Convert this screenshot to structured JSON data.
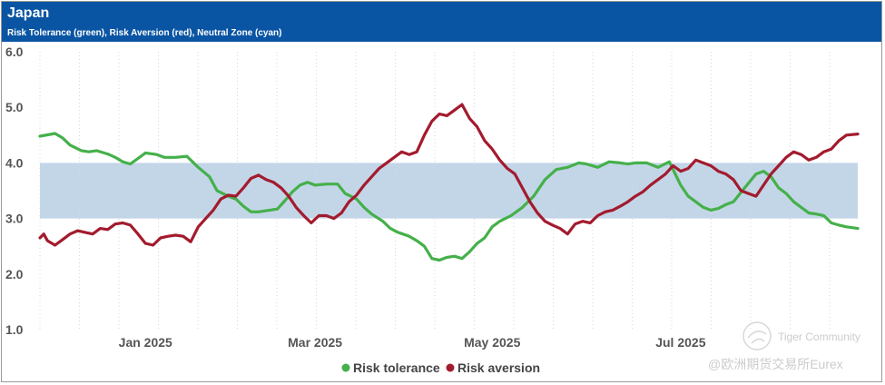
{
  "header": {
    "title": "Japan",
    "subtitle": "Risk Tolerance (green), Risk Aversion (red), Neutral Zone (cyan)"
  },
  "chart_data": {
    "type": "line",
    "title": "Japan",
    "subtitle": "Risk Tolerance (green), Risk Aversion (red), Neutral Zone (cyan)",
    "x_domain": [
      0,
      217
    ],
    "ylim": [
      1.0,
      6.0
    ],
    "y_ticks": [
      1.0,
      2.0,
      3.0,
      4.0,
      5.0,
      6.0
    ],
    "y_tick_labels": [
      "1.0",
      "2.0",
      "3.0",
      "4.0",
      "5.0",
      "6.0"
    ],
    "x_ticks": [
      {
        "label": "Jan 2025",
        "x": 28
      },
      {
        "label": "Mar 2025",
        "x": 73
      },
      {
        "label": "May 2025",
        "x": 120
      },
      {
        "label": "Jul 2025",
        "x": 170
      }
    ],
    "neutral_zone": {
      "low": 3.0,
      "high": 4.0,
      "color": "#c3d6e8"
    },
    "grid": "vertical dotted",
    "legend": [
      "Risk tolerance",
      "Risk aversion"
    ],
    "series": [
      {
        "name": "Risk tolerance",
        "color": "#45b04a",
        "points": [
          [
            0,
            4.48
          ],
          [
            4,
            4.53
          ],
          [
            6,
            4.45
          ],
          [
            8,
            4.32
          ],
          [
            11,
            4.22
          ],
          [
            13,
            4.2
          ],
          [
            15,
            4.22
          ],
          [
            18,
            4.16
          ],
          [
            20,
            4.1
          ],
          [
            22,
            4.02
          ],
          [
            24,
            3.98
          ],
          [
            26,
            4.08
          ],
          [
            28,
            4.18
          ],
          [
            31,
            4.15
          ],
          [
            33,
            4.1
          ],
          [
            36,
            4.1
          ],
          [
            39,
            4.12
          ],
          [
            40,
            4.05
          ],
          [
            42,
            3.92
          ],
          [
            45,
            3.75
          ],
          [
            47,
            3.5
          ],
          [
            50,
            3.4
          ],
          [
            52,
            3.35
          ],
          [
            54,
            3.22
          ],
          [
            56,
            3.12
          ],
          [
            58,
            3.12
          ],
          [
            61,
            3.15
          ],
          [
            63,
            3.17
          ],
          [
            65,
            3.32
          ],
          [
            67,
            3.48
          ],
          [
            69,
            3.6
          ],
          [
            71,
            3.65
          ],
          [
            73,
            3.6
          ],
          [
            76,
            3.62
          ],
          [
            79,
            3.62
          ],
          [
            81,
            3.45
          ],
          [
            84,
            3.35
          ],
          [
            86,
            3.2
          ],
          [
            88,
            3.08
          ],
          [
            91,
            2.95
          ],
          [
            93,
            2.82
          ],
          [
            95,
            2.75
          ],
          [
            98,
            2.68
          ],
          [
            100,
            2.6
          ],
          [
            102,
            2.5
          ],
          [
            104,
            2.28
          ],
          [
            106,
            2.25
          ],
          [
            108,
            2.3
          ],
          [
            110,
            2.32
          ],
          [
            112,
            2.28
          ],
          [
            114,
            2.4
          ],
          [
            116,
            2.55
          ],
          [
            118,
            2.65
          ],
          [
            120,
            2.85
          ],
          [
            122,
            2.95
          ],
          [
            125,
            3.05
          ],
          [
            128,
            3.2
          ],
          [
            131,
            3.4
          ],
          [
            134,
            3.7
          ],
          [
            137,
            3.88
          ],
          [
            140,
            3.92
          ],
          [
            143,
            4.0
          ],
          [
            145,
            3.98
          ],
          [
            148,
            3.92
          ],
          [
            151,
            4.02
          ],
          [
            154,
            4.0
          ],
          [
            156,
            3.98
          ],
          [
            158,
            4.0
          ],
          [
            161,
            4.0
          ],
          [
            164,
            3.92
          ],
          [
            167,
            4.02
          ],
          [
            170,
            3.6
          ],
          [
            172,
            3.4
          ],
          [
            174,
            3.3
          ],
          [
            176,
            3.2
          ],
          [
            178,
            3.15
          ],
          [
            180,
            3.18
          ],
          [
            182,
            3.25
          ],
          [
            184,
            3.3
          ],
          [
            187,
            3.55
          ],
          [
            190,
            3.8
          ],
          [
            192,
            3.85
          ],
          [
            194,
            3.75
          ],
          [
            196,
            3.55
          ],
          [
            198,
            3.45
          ],
          [
            200,
            3.3
          ],
          [
            202,
            3.2
          ],
          [
            204,
            3.1
          ],
          [
            206,
            3.08
          ],
          [
            208,
            3.05
          ],
          [
            210,
            2.92
          ],
          [
            212,
            2.88
          ],
          [
            214,
            2.85
          ],
          [
            217,
            2.82
          ]
        ]
      },
      {
        "name": "Risk aversion",
        "color": "#a31b2e",
        "points": [
          [
            0,
            2.65
          ],
          [
            1,
            2.72
          ],
          [
            2,
            2.6
          ],
          [
            4,
            2.52
          ],
          [
            6,
            2.62
          ],
          [
            8,
            2.72
          ],
          [
            10,
            2.78
          ],
          [
            12,
            2.75
          ],
          [
            14,
            2.72
          ],
          [
            16,
            2.82
          ],
          [
            18,
            2.8
          ],
          [
            20,
            2.9
          ],
          [
            22,
            2.92
          ],
          [
            24,
            2.88
          ],
          [
            26,
            2.72
          ],
          [
            28,
            2.55
          ],
          [
            30,
            2.52
          ],
          [
            32,
            2.65
          ],
          [
            34,
            2.68
          ],
          [
            36,
            2.7
          ],
          [
            38,
            2.68
          ],
          [
            40,
            2.58
          ],
          [
            42,
            2.85
          ],
          [
            44,
            3.0
          ],
          [
            46,
            3.15
          ],
          [
            48,
            3.35
          ],
          [
            50,
            3.42
          ],
          [
            52,
            3.4
          ],
          [
            54,
            3.55
          ],
          [
            56,
            3.72
          ],
          [
            58,
            3.78
          ],
          [
            60,
            3.7
          ],
          [
            62,
            3.65
          ],
          [
            64,
            3.55
          ],
          [
            66,
            3.4
          ],
          [
            68,
            3.2
          ],
          [
            70,
            3.05
          ],
          [
            72,
            2.92
          ],
          [
            74,
            3.05
          ],
          [
            76,
            3.05
          ],
          [
            78,
            3.0
          ],
          [
            80,
            3.1
          ],
          [
            82,
            3.3
          ],
          [
            84,
            3.42
          ],
          [
            86,
            3.6
          ],
          [
            88,
            3.75
          ],
          [
            90,
            3.9
          ],
          [
            92,
            4.0
          ],
          [
            94,
            4.1
          ],
          [
            96,
            4.2
          ],
          [
            98,
            4.15
          ],
          [
            100,
            4.2
          ],
          [
            102,
            4.5
          ],
          [
            104,
            4.75
          ],
          [
            106,
            4.88
          ],
          [
            108,
            4.85
          ],
          [
            110,
            4.95
          ],
          [
            112,
            5.05
          ],
          [
            114,
            4.8
          ],
          [
            116,
            4.65
          ],
          [
            118,
            4.4
          ],
          [
            120,
            4.25
          ],
          [
            122,
            4.05
          ],
          [
            124,
            3.9
          ],
          [
            126,
            3.8
          ],
          [
            128,
            3.55
          ],
          [
            130,
            3.3
          ],
          [
            132,
            3.1
          ],
          [
            134,
            2.95
          ],
          [
            136,
            2.88
          ],
          [
            138,
            2.82
          ],
          [
            140,
            2.72
          ],
          [
            142,
            2.9
          ],
          [
            144,
            2.95
          ],
          [
            146,
            2.92
          ],
          [
            148,
            3.05
          ],
          [
            150,
            3.12
          ],
          [
            152,
            3.15
          ],
          [
            154,
            3.22
          ],
          [
            156,
            3.3
          ],
          [
            158,
            3.4
          ],
          [
            160,
            3.48
          ],
          [
            162,
            3.6
          ],
          [
            164,
            3.7
          ],
          [
            166,
            3.8
          ],
          [
            168,
            3.95
          ],
          [
            170,
            3.85
          ],
          [
            172,
            3.9
          ],
          [
            174,
            4.05
          ],
          [
            176,
            4.0
          ],
          [
            178,
            3.95
          ],
          [
            180,
            3.85
          ],
          [
            182,
            3.8
          ],
          [
            184,
            3.7
          ],
          [
            186,
            3.5
          ],
          [
            188,
            3.45
          ],
          [
            190,
            3.4
          ],
          [
            192,
            3.6
          ],
          [
            194,
            3.8
          ],
          [
            196,
            3.95
          ],
          [
            198,
            4.1
          ],
          [
            200,
            4.2
          ],
          [
            202,
            4.15
          ],
          [
            204,
            4.05
          ],
          [
            206,
            4.1
          ],
          [
            208,
            4.2
          ],
          [
            210,
            4.25
          ],
          [
            212,
            4.4
          ],
          [
            214,
            4.5
          ],
          [
            217,
            4.52
          ]
        ]
      }
    ]
  },
  "watermark": {
    "line1": "Tiger Community",
    "line2": "@欧洲期货交易所Eurex"
  }
}
